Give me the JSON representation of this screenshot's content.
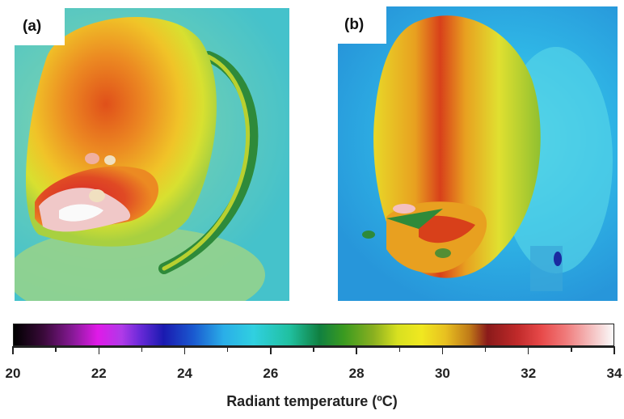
{
  "panels": [
    {
      "label": "(a)",
      "subject": "thermal image, curled animal"
    },
    {
      "label": "(b)",
      "subject": "thermal image, animal viewed from above"
    }
  ],
  "colorbar": {
    "title": "Radiant temperature (ºC)",
    "min": 20,
    "max": 34,
    "major_ticks": [
      "20",
      "22",
      "24",
      "26",
      "28",
      "30",
      "32",
      "34"
    ],
    "minor_step": 1,
    "colors": {
      "cold": "#000000",
      "mid_cold": "#1a1ab0",
      "mid": "#30d0e0",
      "warm": "#f0e820",
      "hot": "#c02a2a",
      "hottest": "#fafafa"
    }
  }
}
